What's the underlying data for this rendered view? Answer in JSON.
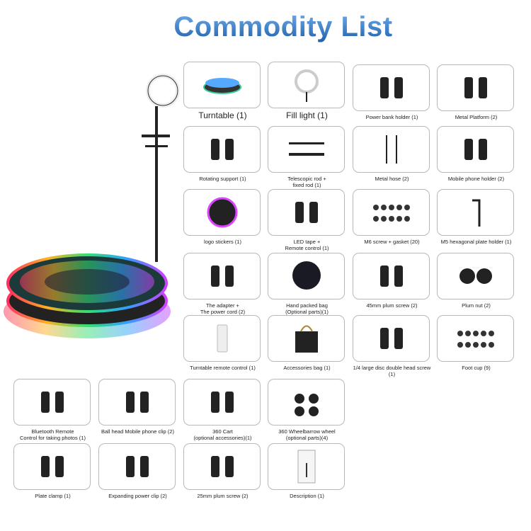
{
  "title": "Commodity List",
  "items": [
    {
      "label": "Turntable (1)",
      "icon": "turntable",
      "big": true
    },
    {
      "label": "Fill light (1)",
      "icon": "ring-light",
      "big": true
    },
    {
      "label": "Power bank holder (1)",
      "icon": "holder"
    },
    {
      "label": "Metal Platform (2)",
      "icon": "ball-head"
    },
    {
      "label": "Rotating support (1)",
      "icon": "support-arm"
    },
    {
      "label": "Telescopic rod +\nfixed rod (1)",
      "icon": "rods"
    },
    {
      "label": "Metal hose (2)",
      "icon": "hose"
    },
    {
      "label": "Mobile phone holder (2)",
      "icon": "phone-holder"
    },
    {
      "label": "logo stickers (1)",
      "icon": "logo-sticker"
    },
    {
      "label": "LED tape +\nRemote control (1)",
      "icon": "led-tape"
    },
    {
      "label": "M6 screw + gasket (20)",
      "icon": "screws"
    },
    {
      "label": "M5 hexagonal plate holder (1)",
      "icon": "hex-key"
    },
    {
      "label": "The adapter +\nThe power cord (2)",
      "icon": "adapter"
    },
    {
      "label": "Hand packed bag\n(Optional parts)(1)",
      "icon": "round-bag"
    },
    {
      "label": "45mm plum screw (2)",
      "icon": "plum-screw"
    },
    {
      "label": "Plum nut (2)",
      "icon": "plum-nut"
    },
    {
      "label": "Turntable remote control (1)",
      "icon": "remote"
    },
    {
      "label": "Accessories bag (1)",
      "icon": "bag"
    },
    {
      "label": "1/4 large disc double head screw (1)",
      "icon": "disc-screw"
    },
    {
      "label": "Foot cup (9)",
      "icon": "foot-cup"
    },
    {
      "label": "Bluetooth Remote\nControl for taking photos (1)",
      "icon": "bt-remote"
    },
    {
      "label": "Ball head Mobile phone clip (2)",
      "icon": "phone-clip"
    },
    {
      "label": "360 Cart\n(optional accessories)(1)",
      "icon": "cart"
    },
    {
      "label": "360 Wheelbarrow wheel\n(optional parts)(4)",
      "icon": "wheels"
    },
    {
      "label": "Plate clamp (1)",
      "icon": "plate-clamp"
    },
    {
      "label": "Expanding power clip (2)",
      "icon": "power-clip"
    },
    {
      "label": "25mm plum screw (2)",
      "icon": "plum-screw"
    },
    {
      "label": "Description (1)",
      "icon": "manual"
    }
  ],
  "colors": {
    "title": "#3d7fc9",
    "border": "#b9b9b9"
  }
}
